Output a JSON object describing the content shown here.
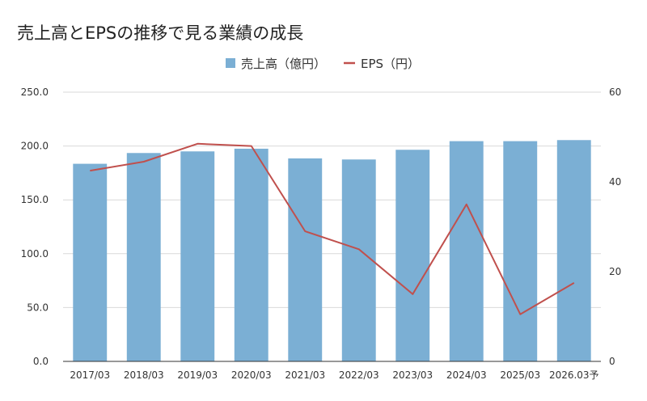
{
  "chart_data": {
    "type": "bar+line",
    "title": "売上高とEPSの推移で見る業績の成長",
    "legend_position": "top-center",
    "categories": [
      "2017/03",
      "2018/03",
      "2019/03",
      "2020/03",
      "2021/03",
      "2022/03",
      "2023/03",
      "2024/03",
      "2025/03",
      "2026.03予"
    ],
    "series": [
      {
        "name": "売上高（億円）",
        "type": "bar",
        "axis": "left",
        "color": "#7bafd4",
        "values": [
          183.5,
          193.5,
          195.0,
          197.5,
          188.5,
          187.5,
          196.5,
          204.5,
          204.5,
          205.5
        ]
      },
      {
        "name": "EPS（円）",
        "type": "line",
        "axis": "right",
        "color": "#c0504d",
        "values": [
          42.5,
          44.5,
          48.5,
          48.0,
          29.0,
          25.0,
          15.0,
          35.0,
          10.5,
          17.5
        ]
      }
    ],
    "y_left": {
      "min": 0,
      "max": 250,
      "ticks": [
        "0.0",
        "50.0",
        "100.0",
        "150.0",
        "200.0",
        "250.0"
      ]
    },
    "y_right": {
      "min": 0,
      "max": 60,
      "ticks": [
        "0",
        "20",
        "40",
        "60"
      ]
    },
    "grid": true
  }
}
